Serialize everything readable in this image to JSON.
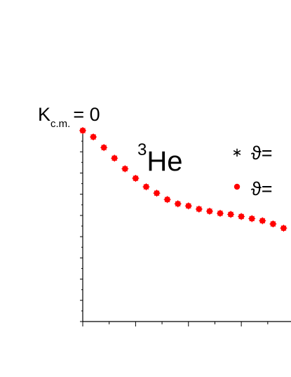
{
  "chart_data": {
    "type": "scatter",
    "label": {
      "main": "K",
      "subscript": "c.m.",
      "rest": "= 0"
    },
    "annotation": {
      "superscript": "3",
      "text": "He"
    },
    "x": [
      0,
      1,
      2,
      3,
      4,
      5,
      6,
      7,
      8,
      9,
      10,
      11,
      12,
      13,
      14,
      15,
      16,
      17,
      18,
      19
    ],
    "series": [
      {
        "name": "ϑ=",
        "color": "#ff0000",
        "marker": "asterisk",
        "values": [
          18.0,
          17.4,
          16.4,
          15.4,
          14.4,
          13.5,
          12.7,
          12.1,
          11.5,
          11.1,
          10.9,
          10.6,
          10.4,
          10.2,
          10.1,
          9.9,
          9.7,
          9.5,
          9.2,
          8.8
        ]
      },
      {
        "name": "ϑ=",
        "color": "#ff0000",
        "marker": "dot",
        "values": [
          18.0,
          17.4,
          16.4,
          15.4,
          14.4,
          13.5,
          12.7,
          12.1,
          11.5,
          11.1,
          10.9,
          10.6,
          10.4,
          10.2,
          10.1,
          9.9,
          9.7,
          9.5,
          9.2,
          8.8
        ]
      }
    ],
    "xlim": [
      0,
      19.7
    ],
    "ylim": [
      0,
      18
    ],
    "xticks": [
      0,
      2.5,
      5,
      7.5,
      10,
      12.5,
      15,
      17.5
    ],
    "yticks": [
      0,
      1,
      2,
      3,
      4,
      5,
      6,
      7,
      8,
      9,
      10,
      11,
      12,
      13,
      14,
      15,
      16,
      17,
      18
    ]
  }
}
